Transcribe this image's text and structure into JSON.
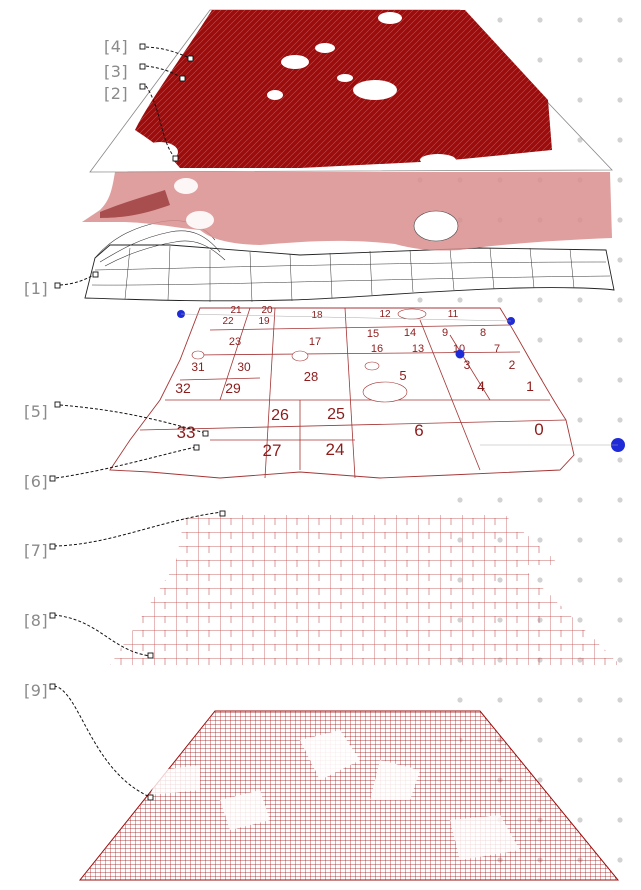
{
  "colors": {
    "accent": "#9b0c0c",
    "translucent": "#d98e8e",
    "markers": "#1f2bd6",
    "callout_text": "#8a8a8a",
    "dot_grid": "#d0d0d0"
  },
  "callouts": [
    {
      "id": "4",
      "text": "[4]"
    },
    {
      "id": "3",
      "text": "[3]"
    },
    {
      "id": "2",
      "text": "[2]"
    },
    {
      "id": "1",
      "text": "[1]"
    },
    {
      "id": "5",
      "text": "[5]"
    },
    {
      "id": "6",
      "text": "[6]"
    },
    {
      "id": "7",
      "text": "[7]"
    },
    {
      "id": "8",
      "text": "[8]"
    },
    {
      "id": "9",
      "text": "[9]"
    }
  ],
  "zones": [
    {
      "text": "21"
    },
    {
      "text": "20"
    },
    {
      "text": "22"
    },
    {
      "text": "19"
    },
    {
      "text": "18"
    },
    {
      "text": "12"
    },
    {
      "text": "11"
    },
    {
      "text": "15"
    },
    {
      "text": "14"
    },
    {
      "text": "9"
    },
    {
      "text": "8"
    },
    {
      "text": "23"
    },
    {
      "text": "17"
    },
    {
      "text": "16"
    },
    {
      "text": "13"
    },
    {
      "text": "10"
    },
    {
      "text": "7"
    },
    {
      "text": "31"
    },
    {
      "text": "30"
    },
    {
      "text": "3"
    },
    {
      "text": "2"
    },
    {
      "text": "28"
    },
    {
      "text": "5"
    },
    {
      "text": "32"
    },
    {
      "text": "29"
    },
    {
      "text": "4"
    },
    {
      "text": "1"
    },
    {
      "text": "26"
    },
    {
      "text": "25"
    },
    {
      "text": "33"
    },
    {
      "text": "6"
    },
    {
      "text": "0"
    },
    {
      "text": "27"
    },
    {
      "text": "24"
    }
  ]
}
